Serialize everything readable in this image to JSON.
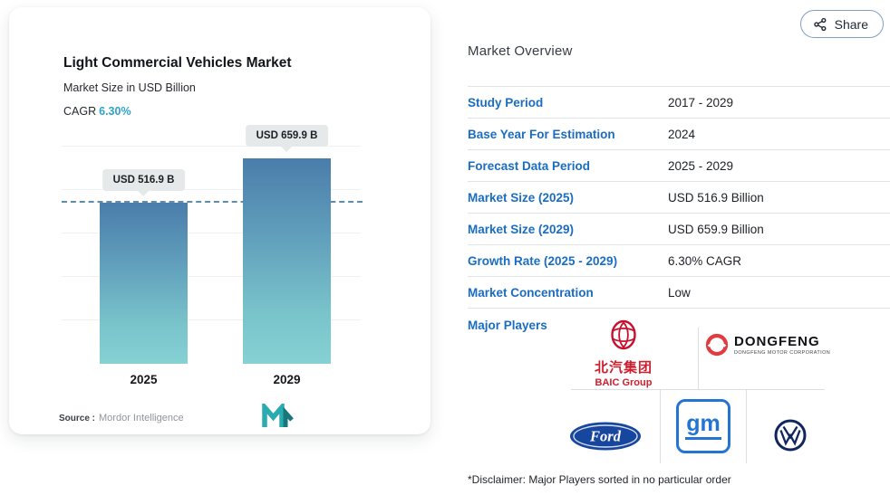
{
  "colors": {
    "accent_blue": "#1a6dc0",
    "cagr_teal": "#2fa2ca",
    "bar_gradient_top": "#4a7dab",
    "bar_gradient_bottom": "#85d1d3",
    "reference_line": "#5f8cab"
  },
  "share": {
    "label": "Share"
  },
  "chart": {
    "title": "Light Commercial Vehicles Market",
    "subtitle": "Market Size in USD Billion",
    "cagr_label": "CAGR",
    "cagr_value": "6.30%",
    "source_label": "Source :",
    "source_value": "Mordor Intelligence"
  },
  "chart_data": {
    "type": "bar",
    "categories": [
      "2025",
      "2029"
    ],
    "values": [
      516.9,
      659.9
    ],
    "value_labels": [
      "USD 516.9 B",
      "USD 659.9 B"
    ],
    "title": "Light Commercial Vehicles Market",
    "subtitle": "Market Size in USD Billion",
    "ylabel": "Market Size in USD Billion",
    "xlabel": "",
    "unit": "USD Billion",
    "cagr": "6.30%",
    "reference_line": 516.9,
    "grid": true,
    "legend": false
  },
  "overview": {
    "title": "Market Overview",
    "rows": [
      {
        "label": "Study Period",
        "value": "2017 - 2029"
      },
      {
        "label": "Base Year For Estimation",
        "value": "2024"
      },
      {
        "label": "Forecast Data Period",
        "value": "2025 - 2029"
      },
      {
        "label": "Market Size (2025)",
        "value": "USD 516.9 Billion"
      },
      {
        "label": "Market Size (2029)",
        "value": "USD 659.9 Billion"
      },
      {
        "label": "Growth Rate (2025 - 2029)",
        "value": "6.30% CAGR"
      },
      {
        "label": "Market Concentration",
        "value": "Low"
      }
    ],
    "major_players_label": "Major Players",
    "major_players": {
      "baic_cn": "北汽集团",
      "baic_en": "BAIC Group",
      "dongfeng_name": "DONGFENG",
      "dongfeng_sub": "DONGFENG MOTOR CORPORATION",
      "ford": "Ford",
      "gm": "gm",
      "vw": "Volkswagen"
    },
    "disclaimer": "*Disclaimer: Major Players sorted in no particular order"
  }
}
